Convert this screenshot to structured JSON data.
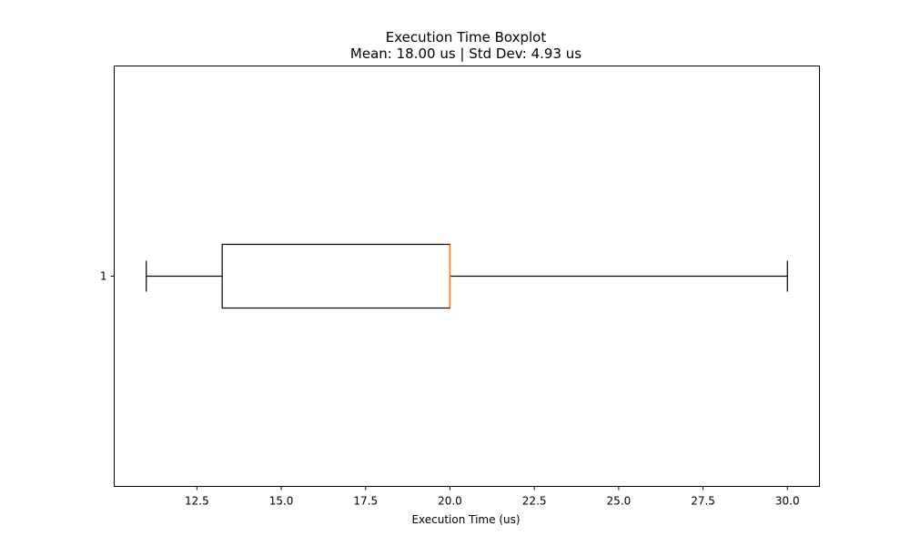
{
  "chart_data": {
    "type": "boxplot",
    "orientation": "horizontal",
    "title": "Execution Time Boxplot",
    "subtitle": "Mean: 18.00 us | Std Dev: 4.93 us",
    "xlabel": "Execution Time (us)",
    "ylabel": "",
    "xlim": [
      10.05,
      30.95
    ],
    "x_ticks": [
      12.5,
      15.0,
      17.5,
      20.0,
      22.5,
      25.0,
      27.5,
      30.0
    ],
    "x_tick_labels": [
      "12.5",
      "15.0",
      "17.5",
      "20.0",
      "22.5",
      "25.0",
      "27.5",
      "30.0"
    ],
    "y_tick_labels": [
      "1"
    ],
    "boxes": [
      {
        "label": "1",
        "whisker_low": 11.0,
        "q1": 13.25,
        "median": 20.0,
        "q3": 20.0,
        "whisker_high": 30.0
      }
    ],
    "grid": false,
    "colors": {
      "box": "#000000",
      "median": "#ff7f0e",
      "whisker": "#000000"
    }
  }
}
